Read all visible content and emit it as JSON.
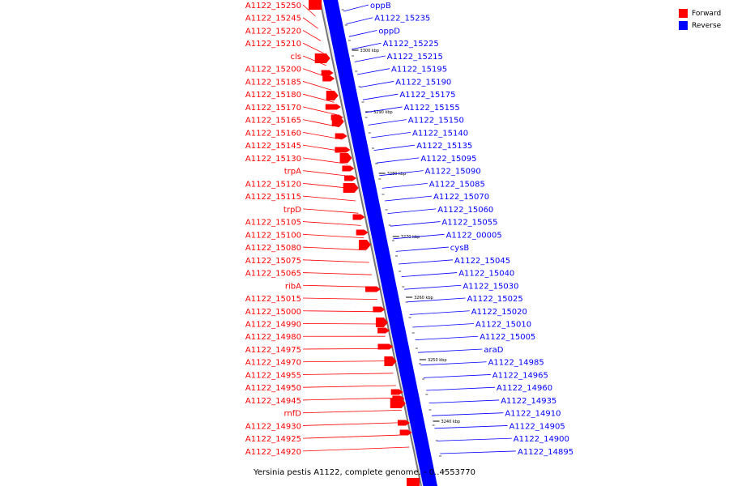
{
  "legend": {
    "forward_label": "Forward",
    "reverse_label": "Reverse",
    "forward_color": "#ff0000",
    "reverse_color": "#0000ff"
  },
  "caption": "Yersinia pestis A1122, complete genome. - 0..4553770",
  "scale_labels": [
    "3300 kbp",
    "3290 kbp",
    "3280 kbp",
    "3270 kbp",
    "3260 kbp",
    "3250 kbp",
    "3240 kbp"
  ],
  "left_genes": [
    "A1122_15250",
    "A1122_15245",
    "A1122_15220",
    "A1122_15210",
    "cls",
    "A1122_15200",
    "A1122_15185",
    "A1122_15180",
    "A1122_15170",
    "A1122_15165",
    "A1122_15160",
    "A1122_15145",
    "A1122_15130",
    "trpA",
    "A1122_15120",
    "A1122_15115",
    "trpD",
    "A1122_15105",
    "A1122_15100",
    "A1122_15080",
    "A1122_15075",
    "A1122_15065",
    "ribA",
    "A1122_15015",
    "A1122_15000",
    "A1122_14990",
    "A1122_14980",
    "A1122_14975",
    "A1122_14970",
    "A1122_14955",
    "A1122_14950",
    "A1122_14945",
    "rnfD",
    "A1122_14930",
    "A1122_14925",
    "A1122_14920"
  ],
  "right_genes": [
    "oppB",
    "A1122_15235",
    "oppD",
    "A1122_15225",
    "A1122_15215",
    "A1122_15195",
    "A1122_15190",
    "A1122_15175",
    "A1122_15155",
    "A1122_15150",
    "A1122_15140",
    "A1122_15135",
    "A1122_15095",
    "A1122_15090",
    "A1122_15085",
    "A1122_15070",
    "A1122_15060",
    "A1122_15055",
    "A1122_00005",
    "cysB",
    "A1122_15045",
    "A1122_15040",
    "A1122_15030",
    "A1122_15025",
    "A1122_15020",
    "A1122_15010",
    "A1122_15005",
    "araD",
    "A1122_14985",
    "A1122_14965",
    "A1122_14960",
    "A1122_14935",
    "A1122_14910",
    "A1122_14905",
    "A1122_14900",
    "A1122_14895"
  ]
}
